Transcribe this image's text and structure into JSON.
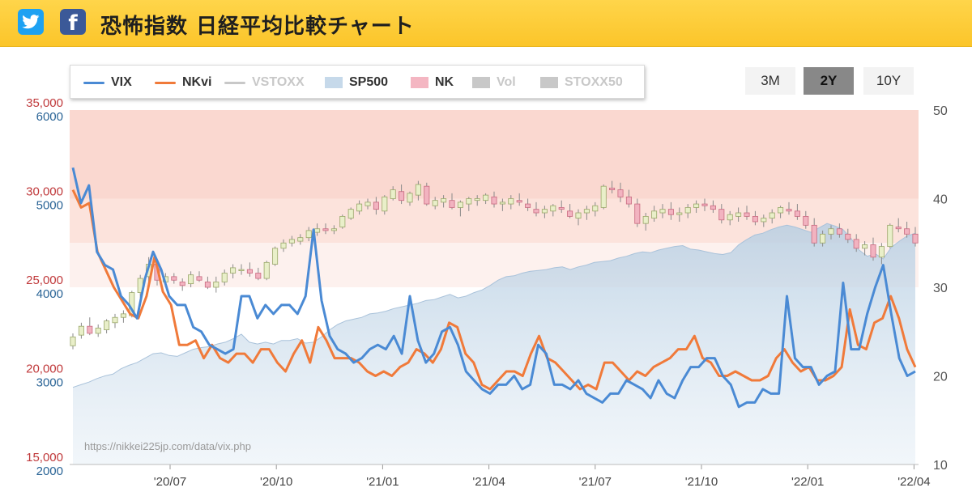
{
  "header": {
    "title": "恐怖指数 日経平均比較チャート",
    "twitter_icon": "twitter-bird-icon",
    "facebook_icon": "facebook-f-icon",
    "facebook_glyph": "f",
    "colors": {
      "bar": "#fbc52a",
      "twitter": "#1da1f2",
      "facebook": "#3b5998"
    }
  },
  "legend": [
    {
      "label": "VIX",
      "symbol": "line",
      "color": "#4a8ad4",
      "active": true
    },
    {
      "label": "NKvi",
      "symbol": "line",
      "color": "#f07a3a",
      "active": true
    },
    {
      "label": "VSTOXX",
      "symbol": "line",
      "color": "#c8c8c8",
      "active": false
    },
    {
      "label": "SP500",
      "symbol": "area",
      "color": "#c6d9ea",
      "active": true
    },
    {
      "label": "NK",
      "symbol": "candle",
      "color": "#f4b6c2",
      "active": true
    },
    {
      "label": "Vol",
      "symbol": "box",
      "color": "#c8c8c8",
      "active": false
    },
    {
      "label": "STOXX50",
      "symbol": "box",
      "color": "#c8c8c8",
      "active": false
    }
  ],
  "range_buttons": [
    {
      "label": "3M",
      "active": false
    },
    {
      "label": "2Y",
      "active": true
    },
    {
      "label": "10Y",
      "active": false
    }
  ],
  "source_url": "https://nikkei225jp.com/data/vix.php",
  "chart_data": {
    "type": "line",
    "x_tick_labels": [
      "'20/07",
      "'20/10",
      "'21/01",
      "'21/04",
      "'21/07",
      "'21/10",
      "'22/01",
      "'22/04"
    ],
    "axes": {
      "nk_left": {
        "ticks": [
          "15,000",
          "20,000",
          "25,000",
          "30,000",
          "35,000"
        ],
        "range": [
          15000,
          35000
        ],
        "color": "#c0393b"
      },
      "sp500_left": {
        "ticks": [
          "2000",
          "3000",
          "4000",
          "5000",
          "6000"
        ],
        "range": [
          2000,
          6000
        ],
        "color": "#2a6496"
      },
      "vix_right": {
        "ticks": [
          "10",
          "20",
          "30",
          "40",
          "50"
        ],
        "range": [
          10,
          50
        ],
        "color": "#555555"
      }
    },
    "zones": [
      {
        "from": 40,
        "to": 50,
        "color": "#fad8d0"
      },
      {
        "from": 35,
        "to": 40,
        "color": "#fce3dc"
      },
      {
        "from": 30,
        "to": 35,
        "color": "#fdf1ee"
      }
    ],
    "series": [
      {
        "name": "VIX",
        "axis": "vix_right",
        "color": "#4a8ad4",
        "values": [
          43.5,
          39.5,
          41.5,
          34,
          32.5,
          32,
          29,
          28,
          26.5,
          31,
          34,
          32,
          29,
          28,
          28,
          25.5,
          25,
          23.5,
          23,
          22.5,
          23,
          29,
          29,
          26.5,
          28,
          27,
          28,
          28,
          27,
          29,
          36.5,
          28.5,
          24.5,
          23,
          22.5,
          21.5,
          22,
          23,
          23.5,
          23,
          24.5,
          22.5,
          29,
          24,
          21.5,
          22.5,
          25,
          25.5,
          23.5,
          20.5,
          19.5,
          18.5,
          18,
          19,
          19,
          20,
          18.5,
          19,
          23.5,
          22.5,
          19,
          19,
          18.5,
          19.5,
          18,
          17.5,
          17,
          18,
          18,
          19.5,
          19,
          18.5,
          17.5,
          19.5,
          18,
          17.5,
          19.5,
          21,
          21,
          22,
          22,
          20,
          19,
          16.5,
          17,
          17,
          18.5,
          18,
          18,
          29,
          22,
          21,
          21,
          19,
          20,
          20.5,
          30.5,
          23,
          23,
          27,
          30,
          32.5,
          27,
          22,
          20,
          20.5
        ]
      },
      {
        "name": "NKvi",
        "axis": "vix_right",
        "color": "#f07a3a",
        "values": [
          41,
          39,
          39.5,
          34,
          32,
          30,
          28.5,
          27,
          26.5,
          29,
          33.5,
          29.5,
          28,
          23.5,
          23.5,
          24,
          22,
          23.5,
          22,
          21.5,
          22.5,
          22.5,
          21.5,
          23,
          23,
          21.5,
          20.5,
          22.5,
          24,
          21.5,
          25.5,
          24,
          22,
          22,
          22,
          21.5,
          20.5,
          20,
          20.5,
          20,
          21,
          21.5,
          23,
          22.5,
          21.5,
          23,
          26,
          25.5,
          22.5,
          21.5,
          19,
          18.5,
          19.5,
          20.5,
          20.5,
          20,
          22.5,
          24.5,
          22,
          21.5,
          20.5,
          19.5,
          18.5,
          19,
          18.5,
          21.5,
          21.5,
          20.5,
          19.5,
          20.5,
          20,
          21,
          21.5,
          22,
          23,
          23,
          24.5,
          22,
          21.5,
          20,
          20,
          20.5,
          20,
          19.5,
          19.5,
          20,
          22,
          23,
          21.5,
          20.5,
          21,
          19.5,
          19.5,
          20,
          21,
          27.5,
          23.5,
          23,
          26,
          26.5,
          29,
          26.5,
          23,
          21
        ]
      },
      {
        "name": "SP500",
        "axis": "sp500_left",
        "color": "#c6d9ea",
        "values": [
          2870,
          2900,
          2930,
          2970,
          3000,
          3020,
          3080,
          3120,
          3150,
          3200,
          3250,
          3260,
          3230,
          3220,
          3260,
          3300,
          3320,
          3330,
          3360,
          3380,
          3420,
          3470,
          3380,
          3360,
          3380,
          3360,
          3400,
          3400,
          3420,
          3370,
          3380,
          3440,
          3520,
          3580,
          3620,
          3640,
          3660,
          3700,
          3710,
          3730,
          3760,
          3780,
          3800,
          3820,
          3850,
          3860,
          3890,
          3920,
          3880,
          3900,
          3940,
          3970,
          4020,
          4080,
          4120,
          4130,
          4160,
          4180,
          4190,
          4200,
          4220,
          4230,
          4200,
          4230,
          4250,
          4280,
          4290,
          4300,
          4330,
          4350,
          4380,
          4400,
          4390,
          4420,
          4440,
          4460,
          4470,
          4430,
          4420,
          4400,
          4380,
          4370,
          4390,
          4480,
          4540,
          4590,
          4610,
          4650,
          4680,
          4700,
          4680,
          4650,
          4620,
          4670,
          4720,
          4690,
          4650,
          4550,
          4420,
          4350,
          4380,
          4320,
          4450,
          4520,
          4580,
          4610
        ]
      },
      {
        "name": "NK",
        "axis": "nk_left",
        "type": "candlestick",
        "ohlc": [
          [
            21700,
            22400,
            21500,
            22200
          ],
          [
            22300,
            23000,
            22100,
            22800
          ],
          [
            22800,
            23300,
            22300,
            22400
          ],
          [
            22400,
            22900,
            22200,
            22700
          ],
          [
            22600,
            23200,
            22400,
            23100
          ],
          [
            23000,
            23500,
            22700,
            23300
          ],
          [
            23300,
            23700,
            23000,
            23500
          ],
          [
            23400,
            24800,
            23300,
            24700
          ],
          [
            24700,
            25700,
            24400,
            25500
          ],
          [
            25600,
            26700,
            25300,
            26300
          ],
          [
            26300,
            26600,
            25100,
            25400
          ],
          [
            25300,
            25800,
            25000,
            25600
          ],
          [
            25600,
            25800,
            25200,
            25400
          ],
          [
            25300,
            25500,
            24800,
            25100
          ],
          [
            25200,
            25900,
            25000,
            25700
          ],
          [
            25600,
            25900,
            25300,
            25400
          ],
          [
            25300,
            25600,
            24900,
            25000
          ],
          [
            25000,
            25600,
            24700,
            25300
          ],
          [
            25300,
            26000,
            25100,
            25800
          ],
          [
            25800,
            26300,
            25500,
            26100
          ],
          [
            26000,
            26300,
            25700,
            26000
          ],
          [
            26000,
            26400,
            25600,
            25800
          ],
          [
            25800,
            26100,
            25400,
            25500
          ],
          [
            25500,
            26500,
            25400,
            26400
          ],
          [
            26300,
            27300,
            26200,
            27200
          ],
          [
            27200,
            27700,
            27000,
            27500
          ],
          [
            27500,
            27900,
            27300,
            27700
          ],
          [
            27600,
            28000,
            27400,
            27800
          ],
          [
            27800,
            28400,
            27600,
            28200
          ],
          [
            28100,
            28600,
            27900,
            28300
          ],
          [
            28300,
            28600,
            28000,
            28200
          ],
          [
            28200,
            28500,
            28000,
            28300
          ],
          [
            28400,
            29100,
            28300,
            29000
          ],
          [
            28900,
            29500,
            28800,
            29400
          ],
          [
            29300,
            29900,
            29100,
            29700
          ],
          [
            29600,
            30000,
            29400,
            29800
          ],
          [
            29800,
            30100,
            29100,
            29400
          ],
          [
            29300,
            30200,
            29100,
            30100
          ],
          [
            30000,
            30700,
            29900,
            30500
          ],
          [
            30400,
            30800,
            29700,
            29900
          ],
          [
            29800,
            30400,
            29600,
            30300
          ],
          [
            30200,
            31000,
            29900,
            30800
          ],
          [
            30700,
            30900,
            29600,
            29700
          ],
          [
            29600,
            30100,
            29400,
            29900
          ],
          [
            29800,
            30200,
            29500,
            30000
          ],
          [
            29900,
            30300,
            29400,
            29500
          ],
          [
            29500,
            29900,
            29000,
            29800
          ],
          [
            29700,
            30100,
            29300,
            30000
          ],
          [
            29900,
            30200,
            29600,
            30000
          ],
          [
            29900,
            30300,
            29700,
            30200
          ],
          [
            30100,
            30400,
            29500,
            29700
          ],
          [
            29700,
            30000,
            29300,
            29800
          ],
          [
            29700,
            30200,
            29400,
            30000
          ],
          [
            29900,
            30300,
            29600,
            29800
          ],
          [
            29700,
            30000,
            29300,
            29500
          ],
          [
            29400,
            29800,
            29000,
            29200
          ],
          [
            29200,
            29600,
            28900,
            29400
          ],
          [
            29300,
            29700,
            29000,
            29600
          ],
          [
            29500,
            29900,
            29200,
            29400
          ],
          [
            29300,
            29700,
            28900,
            29000
          ],
          [
            28900,
            29400,
            28500,
            29200
          ],
          [
            29200,
            29600,
            28800,
            29400
          ],
          [
            29300,
            29800,
            29000,
            29600
          ],
          [
            29500,
            30800,
            29400,
            30700
          ],
          [
            30600,
            31000,
            30300,
            30500
          ],
          [
            30500,
            30900,
            29800,
            30100
          ],
          [
            30100,
            30500,
            29500,
            29700
          ],
          [
            29700,
            30000,
            28400,
            28600
          ],
          [
            28600,
            29200,
            28200,
            29000
          ],
          [
            28900,
            29600,
            28700,
            29300
          ],
          [
            29200,
            29700,
            28900,
            29400
          ],
          [
            29400,
            29800,
            28800,
            29100
          ],
          [
            29100,
            29500,
            28700,
            29200
          ],
          [
            29200,
            29700,
            28900,
            29500
          ],
          [
            29500,
            29900,
            29200,
            29700
          ],
          [
            29700,
            30000,
            29300,
            29600
          ],
          [
            29600,
            29900,
            29200,
            29400
          ],
          [
            29400,
            29700,
            28600,
            28800
          ],
          [
            28800,
            29300,
            28500,
            29100
          ],
          [
            29000,
            29500,
            28700,
            29200
          ],
          [
            29200,
            29600,
            28800,
            29000
          ],
          [
            29000,
            29300,
            28500,
            28700
          ],
          [
            28700,
            29100,
            28400,
            28900
          ],
          [
            28900,
            29400,
            28600,
            29200
          ],
          [
            29200,
            29600,
            28900,
            29500
          ],
          [
            29400,
            29800,
            29100,
            29300
          ],
          [
            29300,
            29700,
            28800,
            29000
          ],
          [
            29000,
            29300,
            28300,
            28500
          ],
          [
            28500,
            28900,
            27300,
            27500
          ],
          [
            27500,
            28200,
            27300,
            28000
          ],
          [
            28000,
            28500,
            27700,
            28300
          ],
          [
            28300,
            28600,
            27800,
            28000
          ],
          [
            28000,
            28300,
            27500,
            27700
          ],
          [
            27700,
            28000,
            27000,
            27200
          ],
          [
            27200,
            27600,
            26800,
            27400
          ],
          [
            27400,
            27800,
            26500,
            26700
          ],
          [
            26700,
            27500,
            26300,
            27300
          ],
          [
            27300,
            28600,
            27200,
            28500
          ],
          [
            28400,
            28900,
            28100,
            28300
          ],
          [
            28300,
            28700,
            27800,
            28000
          ],
          [
            28000,
            28400,
            27300,
            27500
          ]
        ]
      }
    ],
    "grid": false,
    "legend_position": "top-left"
  }
}
